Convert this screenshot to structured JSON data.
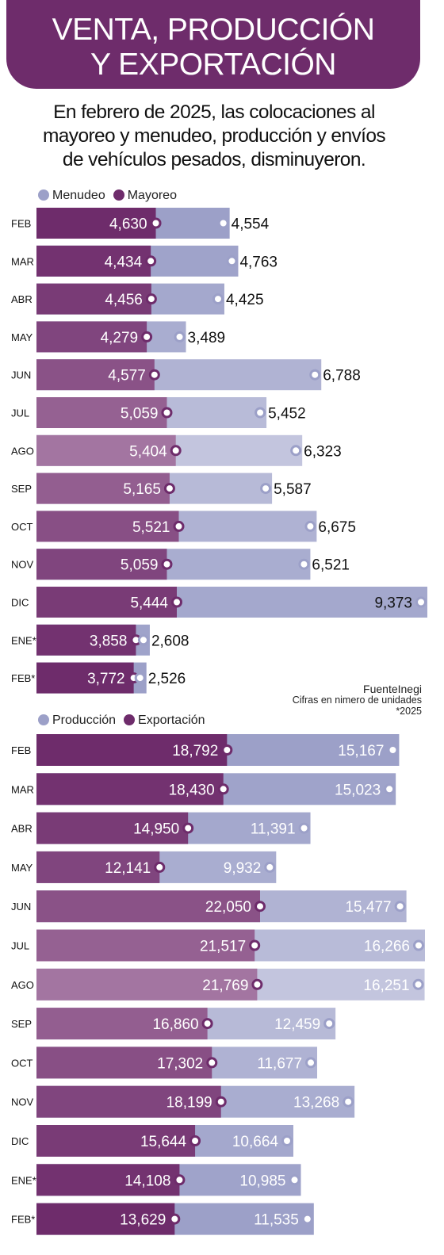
{
  "header": {
    "title_line1": "VENTA, PRODUCCIÓN",
    "title_line2": "Y EXPORTACIÓN"
  },
  "subtitle": {
    "line1": "En febrero de 2025, las colocaciones al",
    "line2": "mayoreo y menudeo, producción y envíos",
    "line3": "de vehículos pesados, disminuyeron."
  },
  "note": {
    "source": "FuenteInegi",
    "units": "Cifras en nimero de unidades",
    "asterisk": "*2025"
  },
  "colors": {
    "brand": "#6e2c6b",
    "light_series": "#9ca0c8"
  },
  "chart_data": [
    {
      "type": "bar",
      "categories": [
        "FEB",
        "MAR",
        "ABR",
        "MAY",
        "JUN",
        "JUL",
        "AGO",
        "SEP",
        "OCT",
        "NOV",
        "DIC",
        "ENE*",
        "FEB*"
      ],
      "series": [
        {
          "name": "Menudeo",
          "values": [
            4554,
            4763,
            4425,
            3489,
            6788,
            5452,
            6323,
            5587,
            6675,
            6521,
            9373,
            2608,
            2526
          ]
        },
        {
          "name": "Mayoreo",
          "values": [
            4630,
            4434,
            4456,
            4279,
            4577,
            5059,
            5404,
            5165,
            5521,
            5059,
            5444,
            3858,
            3772
          ]
        }
      ],
      "labels": {
        "Menudeo": [
          "4,554",
          "4,763",
          "4,425",
          "3,489",
          "6,788",
          "5,452",
          "6,323",
          "5,587",
          "6,675",
          "6,521",
          "9,373",
          "2,608",
          "2,526"
        ],
        "Mayoreo": [
          "4,630",
          "4,434",
          "4,456",
          "4,279",
          "4,577",
          "5,059",
          "5,404",
          "5,165",
          "5,521",
          "5,059",
          "5,444",
          "3,858",
          "3,772"
        ]
      },
      "legend": [
        "Menudeo",
        "Mayoreo"
      ],
      "xlim": [
        0,
        9373
      ]
    },
    {
      "type": "bar",
      "categories": [
        "FEB",
        "MAR",
        "ABR",
        "MAY",
        "JUN",
        "JUL",
        "AGO",
        "SEP",
        "OCT",
        "NOV",
        "DIC",
        "ENE*",
        "FEB*"
      ],
      "series": [
        {
          "name": "Producción",
          "values": [
            15167,
            15023,
            11391,
            9932,
            15477,
            16266,
            16251,
            12459,
            11677,
            13268,
            10664,
            10985,
            11535
          ]
        },
        {
          "name": "Exportación",
          "values": [
            18792,
            18430,
            14950,
            12141,
            22050,
            21517,
            21769,
            16860,
            17302,
            18199,
            15644,
            14108,
            13629
          ]
        }
      ],
      "labels": {
        "Producción": [
          "15,167",
          "15,023",
          "11,391",
          "9,932",
          "15,477",
          "16,266",
          "16,251",
          "12,459",
          "11,677",
          "13,268",
          "10,664",
          "10,985",
          "11,535"
        ],
        "Exportación": [
          "18,792",
          "18,430",
          "14,950",
          "12,141",
          "22,050",
          "21,517",
          "21,769",
          "16,860",
          "17,302",
          "18,199",
          "15,644",
          "14,108",
          "13,629"
        ]
      },
      "legend": [
        "Producción",
        "Exportación"
      ]
    }
  ]
}
